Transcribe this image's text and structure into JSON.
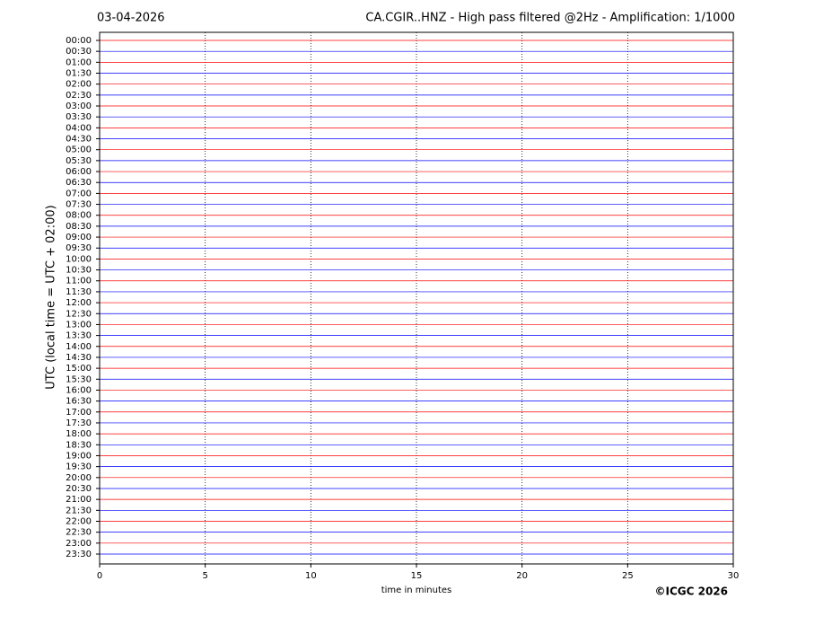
{
  "chart_data": {
    "type": "helicorder",
    "date": "03-04-2026",
    "title": "CA.CGIR..HNZ - High pass filtered @2Hz - Amplification: 1/1000",
    "xlabel": "time in minutes",
    "ylabel": "UTC (local time = UTC + 02:00)",
    "credit": "©ICGC 2026",
    "xlim": [
      0,
      30
    ],
    "xticks": [
      0,
      5,
      10,
      15,
      20,
      25,
      30
    ],
    "grid": true,
    "trace_colors": [
      "#ff0000",
      "#0000ff"
    ],
    "rows": [
      "00:00",
      "00:30",
      "01:00",
      "01:30",
      "02:00",
      "02:30",
      "03:00",
      "03:30",
      "04:00",
      "04:30",
      "05:00",
      "05:30",
      "06:00",
      "06:30",
      "07:00",
      "07:30",
      "08:00",
      "08:30",
      "09:00",
      "09:30",
      "10:00",
      "10:30",
      "11:00",
      "11:30",
      "12:00",
      "12:30",
      "13:00",
      "13:30",
      "14:00",
      "14:30",
      "15:00",
      "15:30",
      "16:00",
      "16:30",
      "17:00",
      "17:30",
      "18:00",
      "18:30",
      "19:00",
      "19:30",
      "20:00",
      "20:30",
      "21:00",
      "21:30",
      "22:00",
      "22:30",
      "23:00",
      "23:30"
    ]
  }
}
